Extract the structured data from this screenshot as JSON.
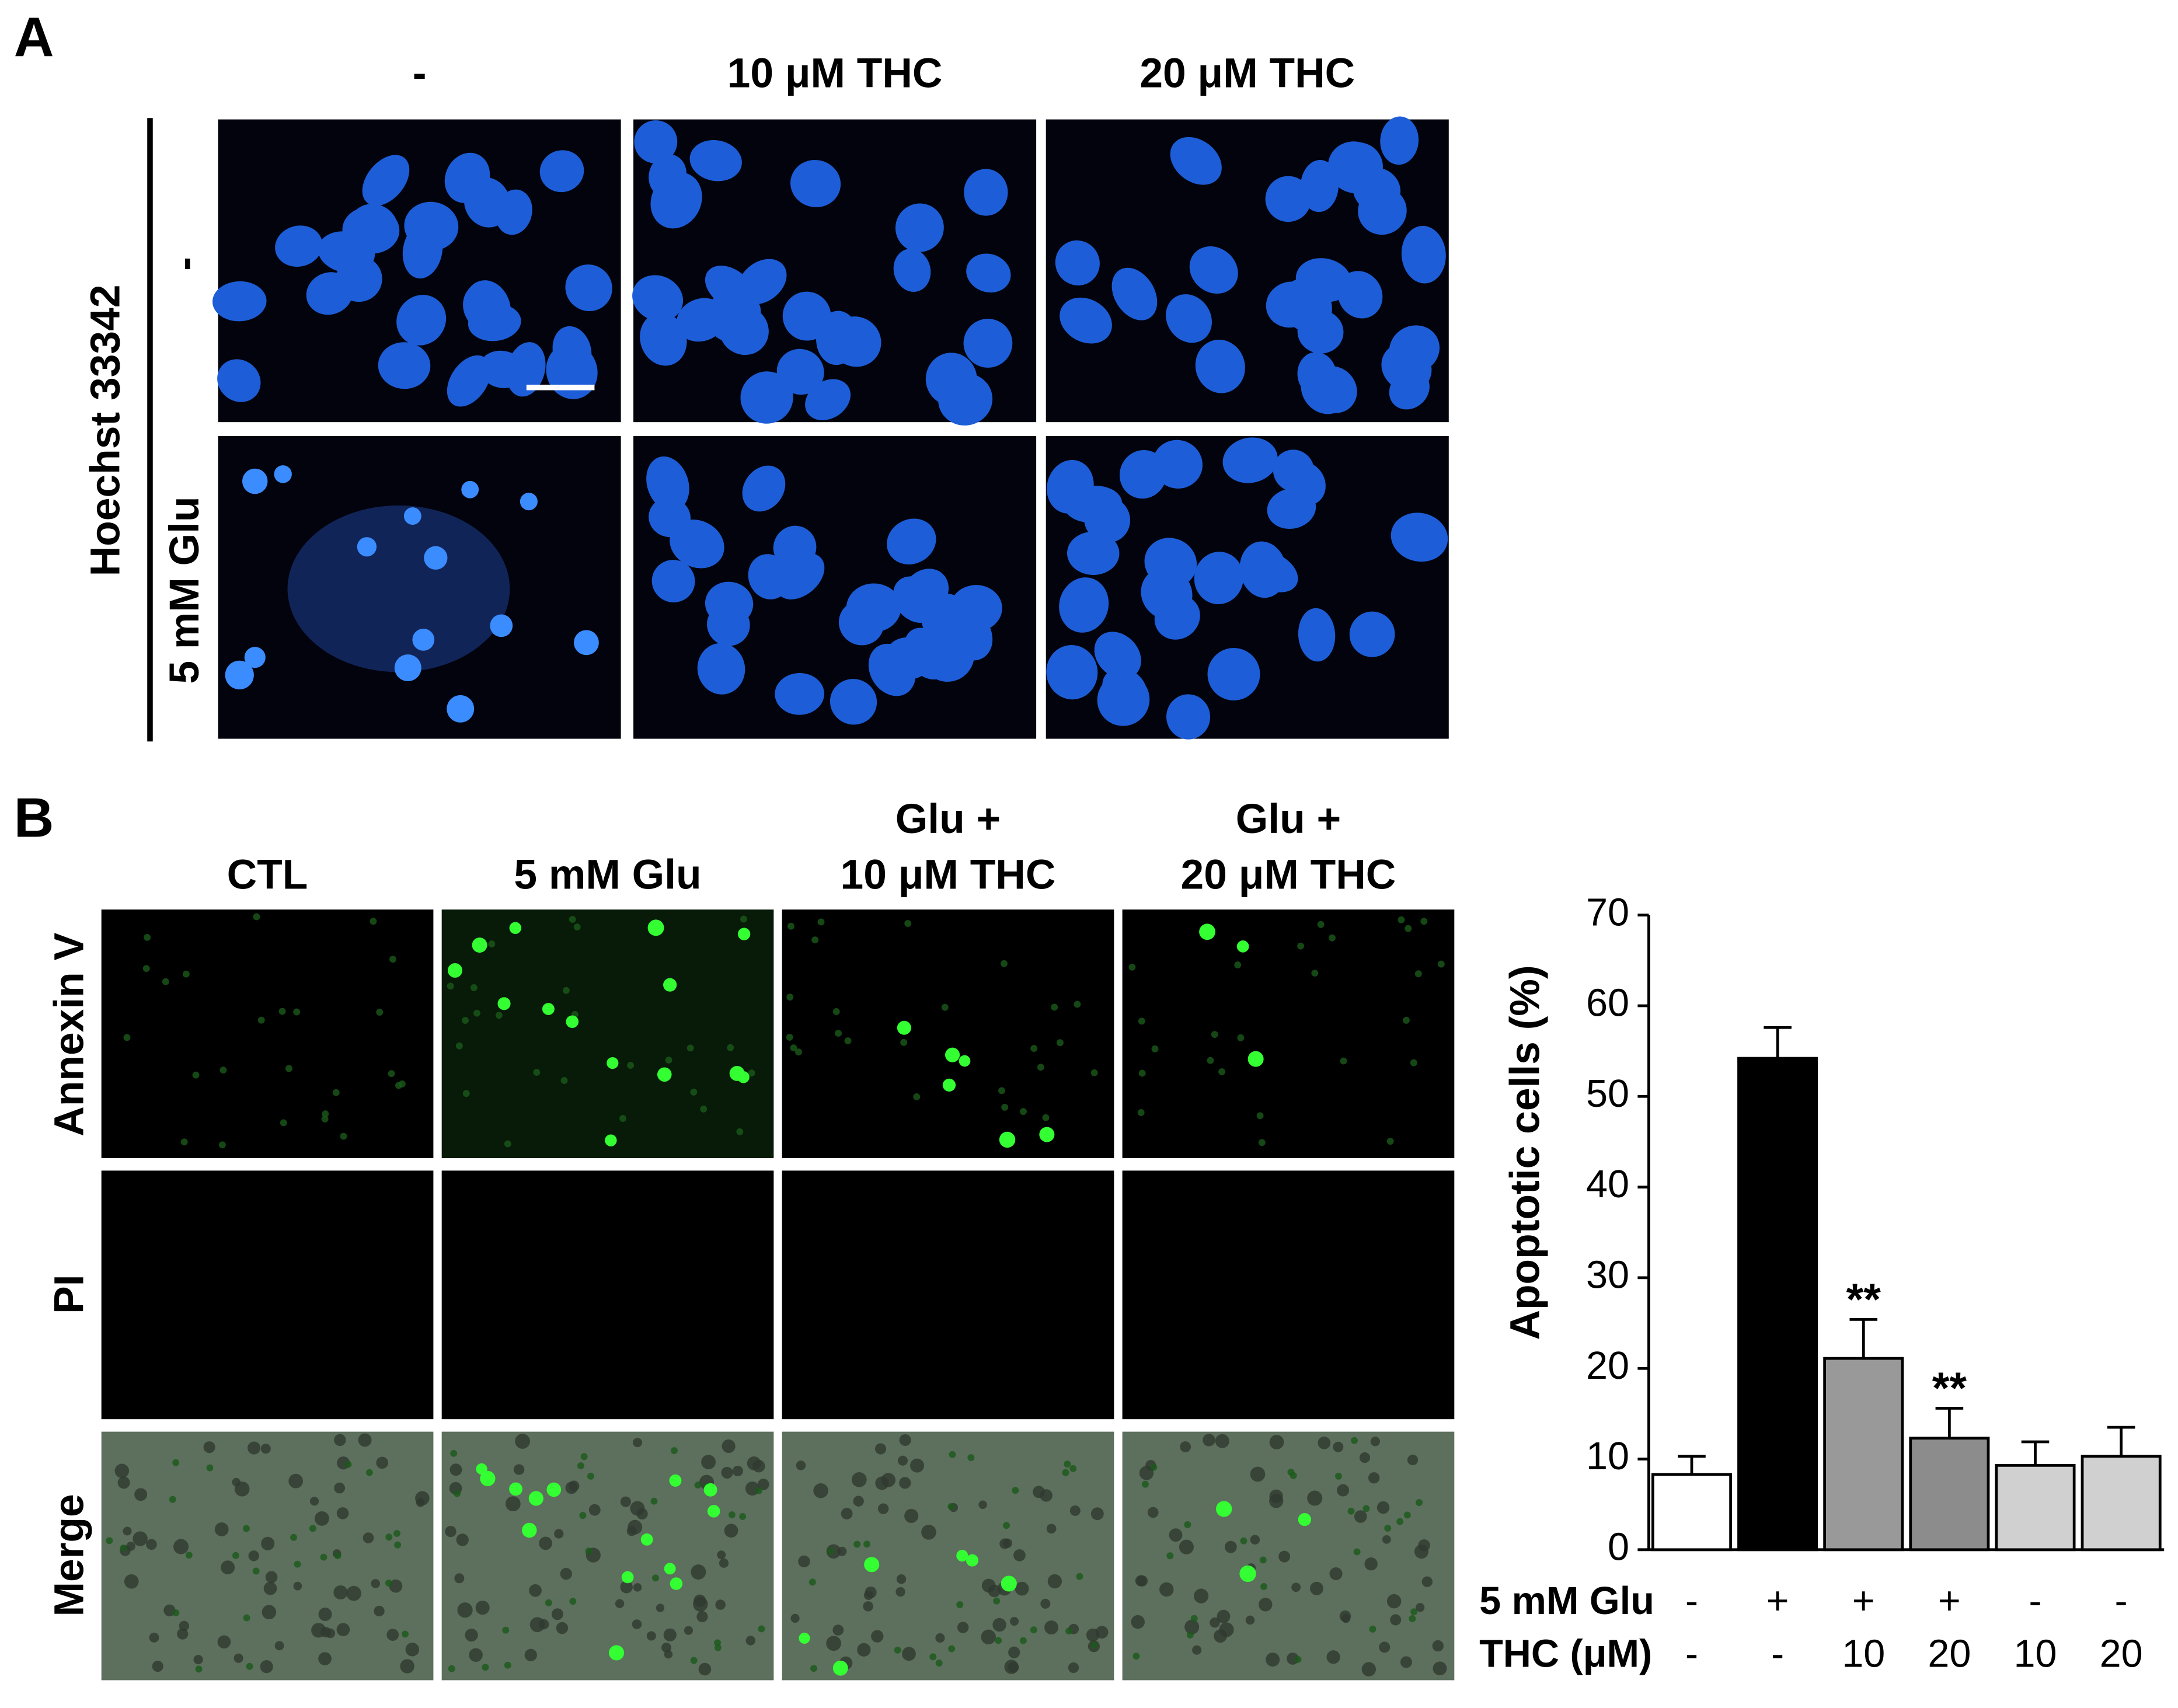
{
  "panel_a": {
    "label": "A",
    "columns": [
      "-",
      "10 μM THC",
      "20 μM THC"
    ],
    "stain": "Hoechst 33342",
    "rows": [
      "-",
      "5 mM Glu"
    ]
  },
  "panel_b": {
    "label": "B",
    "columns": [
      [
        "CTL"
      ],
      [
        "5 mM Glu"
      ],
      [
        "Glu +",
        "10 μM THC"
      ],
      [
        "Glu +",
        "20 μM THC"
      ]
    ],
    "rows": [
      "Annexin V",
      "PI",
      "Merge"
    ]
  },
  "chart_data": {
    "type": "bar",
    "y_label": "Apoptotic cells (%)",
    "conditions": [
      {
        "name": "5 mM Glu",
        "values": [
          "-",
          "+",
          "+",
          "+",
          "-",
          "-"
        ]
      },
      {
        "name": "THC (μM)",
        "values": [
          "-",
          "-",
          "10",
          "20",
          "10",
          "20"
        ]
      }
    ],
    "values": [
      8.3,
      54.2,
      21.1,
      12.3,
      9.3,
      10.3
    ],
    "errors": [
      2.0,
      3.4,
      4.3,
      3.3,
      2.6,
      3.2
    ],
    "colors": [
      "#ffffff",
      "#000000",
      "#999999",
      "#8c8c8c",
      "#d0d0d0",
      "#d0d0d0"
    ],
    "significance": [
      null,
      null,
      "**",
      "**",
      null,
      null
    ],
    "ylim": [
      0,
      70
    ],
    "yticks": [
      0,
      10,
      20,
      30,
      40,
      50,
      60,
      70
    ]
  }
}
